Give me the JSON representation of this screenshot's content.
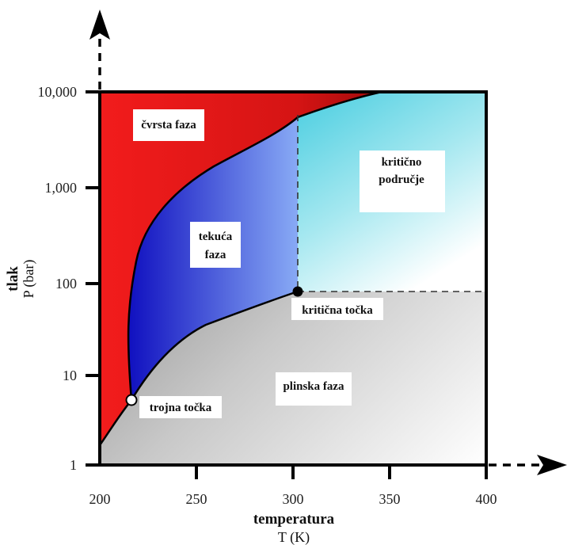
{
  "diagram": {
    "x_axis": {
      "title": "temperatura",
      "unit_label": "T (K)",
      "ticks": [
        "200",
        "250",
        "300",
        "350",
        "400"
      ]
    },
    "y_axis": {
      "title": "tlak",
      "unit_label": "P (bar)",
      "ticks": [
        "1",
        "10",
        "100",
        "1,000",
        "10,000"
      ]
    },
    "regions": {
      "solid": "čvrsta faza",
      "liquid_line1": "tekuća",
      "liquid_line2": "faza",
      "gas": "plinska faza",
      "critical_line1": "kritično",
      "critical_line2": "područje"
    },
    "points": {
      "triple": "trojna točka",
      "critical": "kritična točka"
    },
    "colors": {
      "solid": "#e8171b",
      "liquid": "#1a1fc4",
      "critical_region": "#4fcfe0",
      "gas": "#7a7a7a"
    }
  }
}
